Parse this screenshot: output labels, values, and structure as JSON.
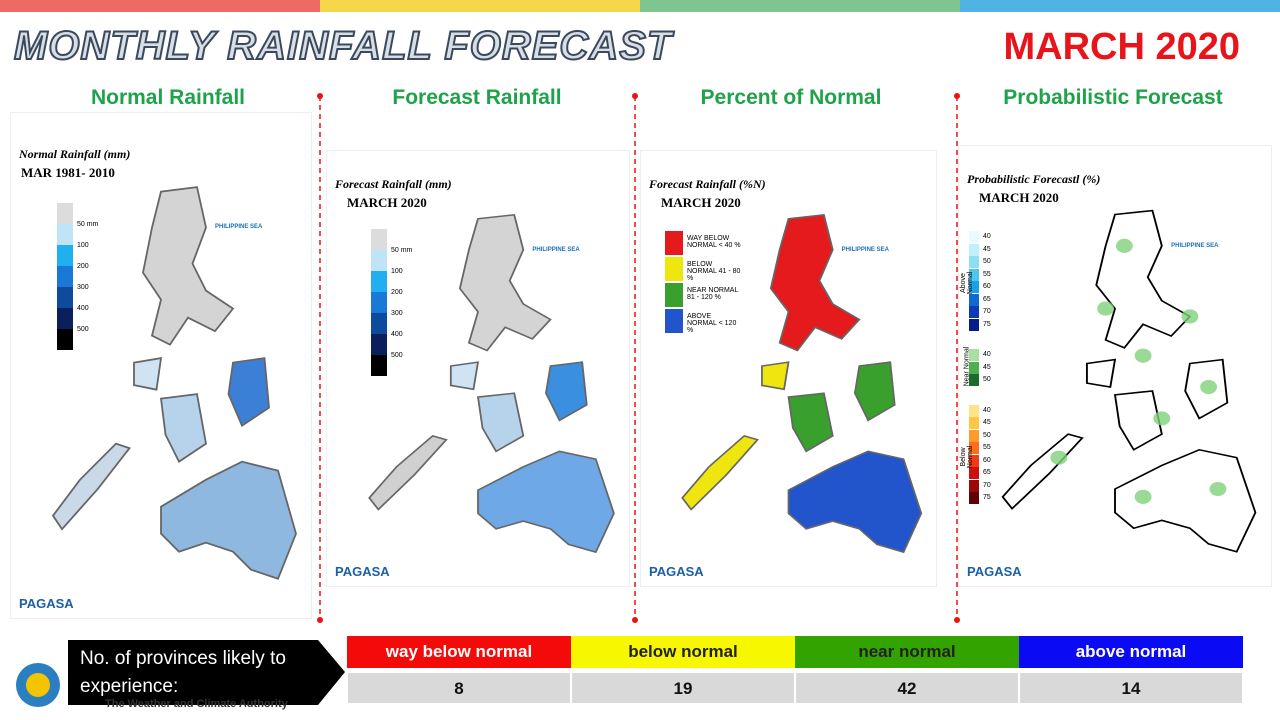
{
  "header": {
    "title": "MONTHLY RAINFALL FORECAST",
    "period": "MARCH 2020"
  },
  "panels": [
    {
      "title": "Normal Rainfall",
      "map_title": "Normal Rainfall (mm)",
      "map_subtitle": "MAR 1981- 2010",
      "legend": [
        "50 mm",
        "100",
        "200",
        "300",
        "400",
        "500"
      ]
    },
    {
      "title": "Forecast Rainfall",
      "map_title": "Forecast Rainfall (mm)",
      "map_subtitle": "MARCH 2020",
      "legend": [
        "50 mm",
        "100",
        "200",
        "300",
        "400",
        "500"
      ]
    },
    {
      "title": "Percent of Normal",
      "map_title": "Forecast Rainfall (%N)",
      "map_subtitle": "MARCH 2020",
      "legend": [
        "WAY BELOW NORMAL < 40 %",
        "BELOW NORMAL 41 - 80 %",
        "NEAR NORMAL 81 - 120 %",
        "ABOVE NORMAL < 120 %"
      ]
    },
    {
      "title": "Probabilistic Forecast",
      "map_title": "Probabilistic Forecastl (%)",
      "map_subtitle": "MARCH 2020",
      "legend_groups": [
        {
          "name": "Above Normal",
          "labels": [
            "40",
            "45",
            "50",
            "55",
            "60",
            "65",
            "70",
            "75"
          ]
        },
        {
          "name": "Near Normal",
          "labels": [
            "40",
            "45",
            "50"
          ]
        },
        {
          "name": "Below Normal",
          "labels": [
            "40",
            "45",
            "50",
            "55",
            "60",
            "65",
            "70",
            "75"
          ]
        }
      ]
    }
  ],
  "sea_label": "PHILIPPINE SEA",
  "logo": {
    "name": "PAGASA",
    "tagline": "The Weather and Climate Authority"
  },
  "table": {
    "caption": "No. of provinces likely to experience:",
    "columns": [
      "way below normal",
      "below normal",
      "near normal",
      "above normal"
    ],
    "values": [
      8,
      19,
      42,
      14
    ]
  }
}
